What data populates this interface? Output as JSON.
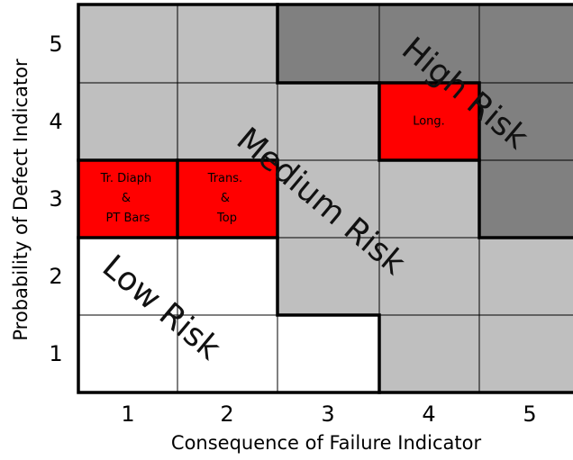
{
  "x_axis": {
    "title": "Consequence of Failure Indicator",
    "ticks": [
      "1",
      "2",
      "3",
      "4",
      "5"
    ]
  },
  "y_axis": {
    "title": "Probability of Defect Indicator",
    "ticks": [
      "5",
      "4",
      "3",
      "2",
      "1"
    ]
  },
  "cells": [
    {
      "lines": [
        "Tr. Diaph",
        "&",
        "PT Bars"
      ]
    },
    {
      "lines": [
        "Trans.",
        "&",
        "Top"
      ]
    },
    {
      "lines": [
        "Long."
      ]
    }
  ],
  "zones": {
    "low": "Low Risk",
    "medium": "Medium Risk",
    "high": "High Risk"
  }
}
